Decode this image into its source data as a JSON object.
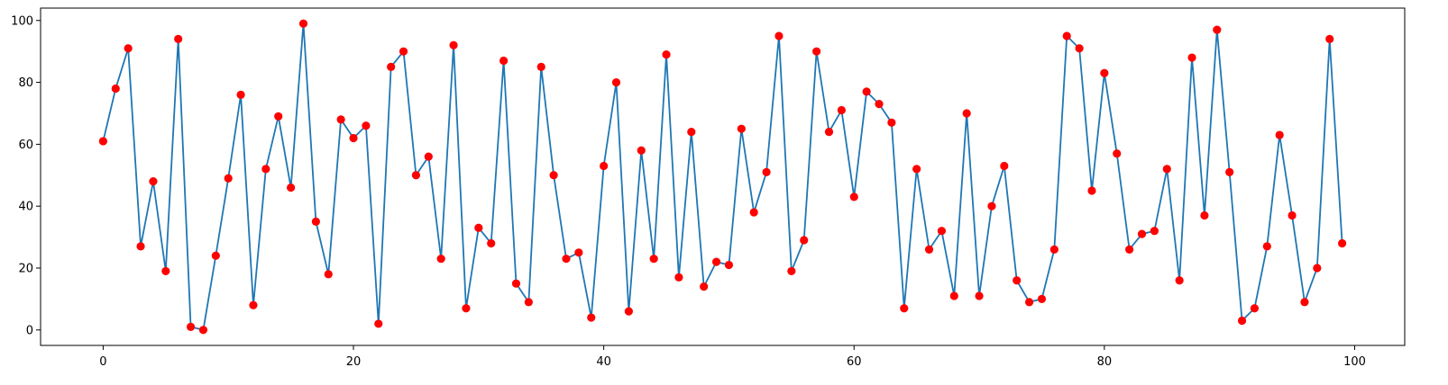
{
  "chart_data": {
    "type": "line",
    "title": "",
    "xlabel": "",
    "ylabel": "",
    "xlim": [
      -5,
      104
    ],
    "ylim": [
      -5,
      104
    ],
    "xticks": [
      0,
      20,
      40,
      60,
      80,
      100
    ],
    "yticks": [
      0,
      20,
      40,
      60,
      80,
      100
    ],
    "grid": false,
    "line_color": "#1f77b4",
    "marker_color": "#ff0000",
    "series": [
      {
        "x": [
          0,
          1,
          2,
          3,
          4,
          5,
          6,
          7,
          8,
          9,
          10,
          11,
          12,
          13,
          14,
          15,
          16,
          17,
          18,
          19,
          20,
          21,
          22,
          23,
          24,
          25,
          26,
          27,
          28,
          29,
          30,
          31,
          32,
          33,
          34,
          35,
          36,
          37,
          38,
          39,
          40,
          41,
          42,
          43,
          44,
          45,
          46,
          47,
          48,
          49,
          50,
          51,
          52,
          53,
          54,
          55,
          56,
          57,
          58,
          59,
          60,
          61,
          62,
          63,
          64,
          65,
          66,
          67,
          68,
          69,
          70,
          71,
          72,
          73,
          74,
          75,
          76,
          77,
          78,
          79,
          80,
          81,
          82,
          83,
          84,
          85,
          86,
          87,
          88,
          89,
          90,
          91,
          92,
          93,
          94,
          95,
          96,
          97,
          98,
          99
        ],
        "y": [
          61,
          78,
          91,
          27,
          48,
          19,
          94,
          1,
          0,
          24,
          49,
          76,
          8,
          52,
          69,
          46,
          99,
          35,
          18,
          68,
          62,
          66,
          2,
          85,
          90,
          50,
          56,
          23,
          92,
          7,
          33,
          28,
          87,
          15,
          9,
          85,
          50,
          23,
          25,
          4,
          53,
          80,
          6,
          58,
          23,
          89,
          17,
          64,
          14,
          22,
          21,
          65,
          38,
          51,
          95,
          19,
          29,
          90,
          64,
          71,
          43,
          77,
          73,
          67,
          7,
          52,
          26,
          32,
          11,
          70,
          11,
          40,
          53,
          16,
          9,
          10,
          26,
          95,
          91,
          45,
          83,
          57,
          26,
          31,
          32,
          52,
          16,
          88,
          37,
          97,
          51,
          3,
          7,
          27,
          63,
          37,
          9,
          20,
          94,
          28
        ]
      }
    ]
  }
}
